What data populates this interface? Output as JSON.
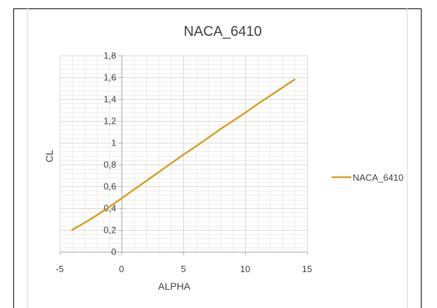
{
  "colors": {
    "series": "#D4A017",
    "major_grid": "#d9d9d9",
    "minor_grid": "#ececec",
    "axis": "#a6a6a6",
    "frame": "#000000",
    "chart_border": "#d9d9d9"
  },
  "chart_data": {
    "type": "line",
    "title": "NACA_6410",
    "xlabel": "ALPHA",
    "ylabel": "CL",
    "xlim": [
      -5,
      15
    ],
    "ylim": [
      0,
      1.8
    ],
    "x_ticks": [
      "-5",
      "0",
      "5",
      "10",
      "15"
    ],
    "y_ticks": [
      "0",
      "0,2",
      "0,4",
      "0,6",
      "0,8",
      "1",
      "1,2",
      "1,4",
      "1,6",
      "1,8"
    ],
    "grid": true,
    "minor_grid": true,
    "legend_position": "right",
    "series": [
      {
        "name": "NACA_6410",
        "x": [
          -4,
          -3,
          -2,
          -1,
          0,
          1,
          2,
          3,
          4,
          5,
          6,
          7,
          8,
          9,
          10,
          11,
          12,
          13,
          14
        ],
        "y": [
          0.2,
          0.265,
          0.335,
          0.41,
          0.49,
          0.57,
          0.65,
          0.73,
          0.81,
          0.89,
          0.965,
          1.045,
          1.125,
          1.2,
          1.275,
          1.355,
          1.43,
          1.505,
          1.58
        ]
      }
    ]
  }
}
